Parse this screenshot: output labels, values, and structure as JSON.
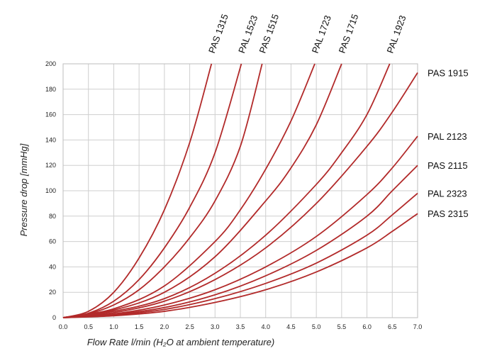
{
  "chart_data": {
    "type": "line",
    "title": "",
    "xlabel": "Flow Rate l/min (H₂O at ambient temperature)",
    "ylabel": "Pressure drop [mmHg]",
    "xlim": [
      0,
      7
    ],
    "ylim": [
      0,
      200
    ],
    "x_ticks": [
      "0.0",
      "0.5",
      "1.0",
      "1.5",
      "2.0",
      "2.5",
      "3.0",
      "3.5",
      "4.0",
      "4.5",
      "5.0",
      "5.5",
      "6.0",
      "6.5",
      "7.0"
    ],
    "y_ticks": [
      "0",
      "20",
      "40",
      "60",
      "80",
      "100",
      "120",
      "140",
      "160",
      "180",
      "200"
    ],
    "grid": true,
    "legend": "none",
    "line_color": "#b22a2a",
    "series": [
      {
        "name": "PAS 1315",
        "label_position": "top",
        "x": [
          0,
          0.5,
          1.0,
          1.5,
          2.0,
          2.5,
          2.93
        ],
        "y": [
          0,
          5,
          20,
          47,
          85,
          138,
          200
        ]
      },
      {
        "name": "PAL 1523",
        "label_position": "top",
        "x": [
          0,
          0.5,
          1.0,
          1.5,
          2.0,
          2.5,
          3.0,
          3.52
        ],
        "y": [
          0,
          3.5,
          13,
          30,
          55,
          87,
          130,
          200
        ]
      },
      {
        "name": "PAS 1515",
        "label_position": "top",
        "x": [
          0,
          0.5,
          1.0,
          1.5,
          2.0,
          2.5,
          3.0,
          3.5,
          3.93
        ],
        "y": [
          0,
          3,
          10,
          22,
          40,
          63,
          92,
          135,
          200
        ]
      },
      {
        "name": "PAL 1723",
        "label_position": "top",
        "x": [
          0,
          1.0,
          2.0,
          3.0,
          3.5,
          4.0,
          4.5,
          4.97
        ],
        "y": [
          0,
          7,
          25,
          60,
          85,
          117,
          155,
          200
        ]
      },
      {
        "name": "PAS 1715",
        "label_position": "top",
        "x": [
          0,
          1.0,
          2.0,
          3.0,
          4.0,
          4.5,
          5.0,
          5.5
        ],
        "y": [
          0,
          6,
          20,
          48,
          92,
          118,
          152,
          200
        ]
      },
      {
        "name": "PAL 1923",
        "label_position": "top",
        "x": [
          0,
          1.0,
          2.0,
          3.0,
          4.0,
          5.0,
          5.5,
          6.0,
          6.45
        ],
        "y": [
          0,
          5,
          15,
          35,
          65,
          105,
          130,
          160,
          200
        ]
      },
      {
        "name": "PAS 1915",
        "label_position": "right",
        "x": [
          0,
          1.0,
          2.0,
          3.0,
          4.0,
          5.0,
          6.0,
          6.5,
          7.0
        ],
        "y": [
          0,
          4,
          13,
          30,
          55,
          90,
          135,
          162,
          193
        ]
      },
      {
        "name": "PAL 2123",
        "label_position": "right",
        "x": [
          0,
          1.0,
          2.0,
          3.0,
          4.0,
          5.0,
          6.0,
          6.5,
          7.0
        ],
        "y": [
          0,
          3,
          10,
          22,
          40,
          64,
          97,
          118,
          143
        ]
      },
      {
        "name": "PAS 2115",
        "label_position": "right",
        "x": [
          0,
          1.0,
          2.0,
          3.0,
          4.0,
          5.0,
          6.0,
          6.5,
          7.0
        ],
        "y": [
          0,
          2.5,
          8,
          18,
          33,
          53,
          80,
          100,
          120
        ]
      },
      {
        "name": "PAL 2323",
        "label_position": "right",
        "x": [
          0,
          1.0,
          2.0,
          3.0,
          4.0,
          5.0,
          6.0,
          6.5,
          7.0
        ],
        "y": [
          0,
          2,
          6.5,
          15,
          27,
          43,
          65,
          81,
          98
        ]
      },
      {
        "name": "PAS 2315",
        "label_position": "right",
        "x": [
          0,
          1.0,
          2.0,
          3.0,
          4.0,
          5.0,
          6.0,
          6.5,
          7.0
        ],
        "y": [
          0,
          1.5,
          5,
          12,
          22,
          36,
          55,
          68,
          82
        ]
      }
    ]
  }
}
